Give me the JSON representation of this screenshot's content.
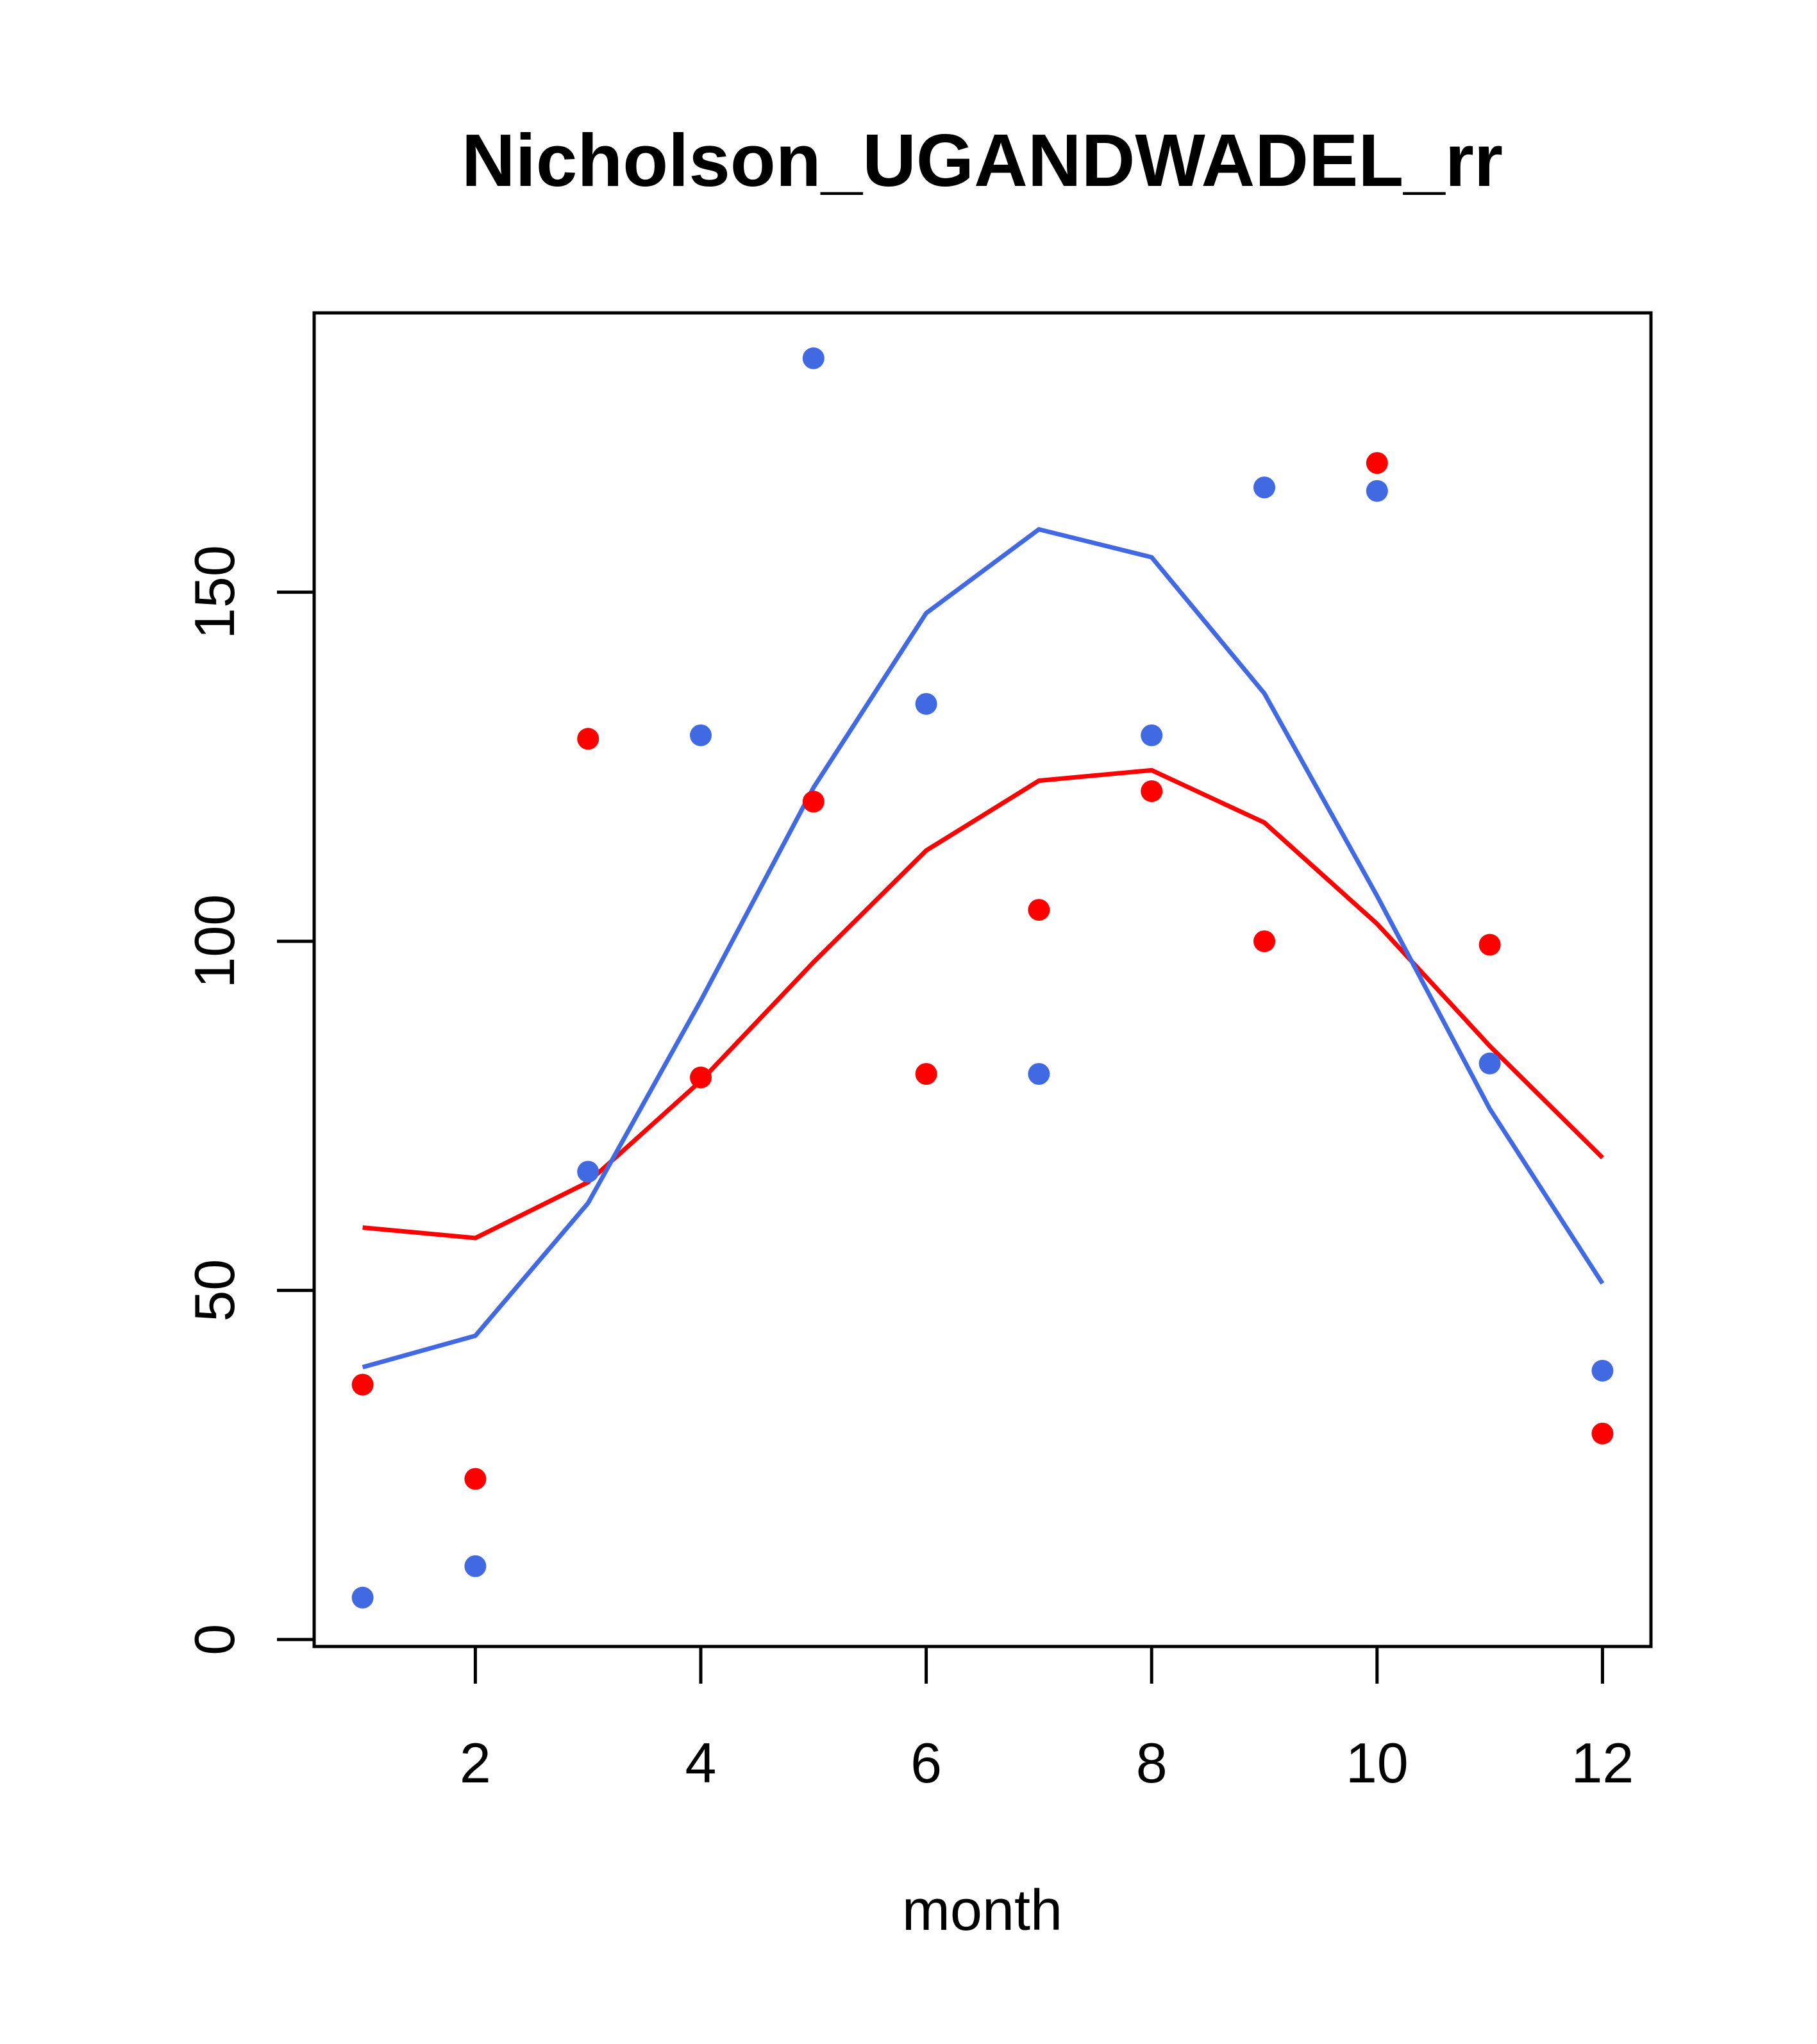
{
  "chart_data": {
    "type": "scatter",
    "title": "Nicholson_UGANDWADEL_rr",
    "xlabel": "month",
    "ylabel": "",
    "xlim": [
      0.57,
      12.43
    ],
    "ylim": [
      -1,
      190
    ],
    "x_ticks": [
      2,
      4,
      6,
      8,
      10,
      12
    ],
    "y_ticks": [
      0,
      50,
      100,
      150
    ],
    "grid": false,
    "legend": "none",
    "series": [
      {
        "color": "#ff0000",
        "mark": "points",
        "x": [
          1,
          2,
          3,
          4,
          5,
          6,
          7,
          8,
          9,
          10,
          11,
          12
        ],
        "y": [
          36.5,
          23,
          129,
          80.5,
          120,
          81,
          104.5,
          121.5,
          100,
          168.5,
          99.5,
          29.5
        ]
      },
      {
        "color": "#4169e1",
        "mark": "points",
        "x": [
          1,
          2,
          3,
          4,
          5,
          6,
          7,
          8,
          9,
          10,
          11,
          12
        ],
        "y": [
          6,
          10.5,
          67,
          129.5,
          183.5,
          134,
          81,
          129.5,
          165,
          164.5,
          82.5,
          38.5
        ]
      },
      {
        "color": "#ff0000",
        "mark": "line",
        "x": [
          1,
          2,
          3,
          4,
          5,
          6,
          7,
          8,
          9,
          10,
          11,
          12
        ],
        "y": [
          59,
          57.5,
          65.5,
          80,
          97,
          113,
          123,
          124.5,
          117,
          102.5,
          85,
          69
        ]
      },
      {
        "color": "#4169e1",
        "mark": "line",
        "x": [
          1,
          2,
          3,
          4,
          5,
          6,
          7,
          8,
          9,
          10,
          11,
          12
        ],
        "y": [
          39,
          43.5,
          62.5,
          91.5,
          122,
          147,
          159,
          155,
          135.5,
          106.5,
          76,
          51
        ]
      }
    ]
  }
}
